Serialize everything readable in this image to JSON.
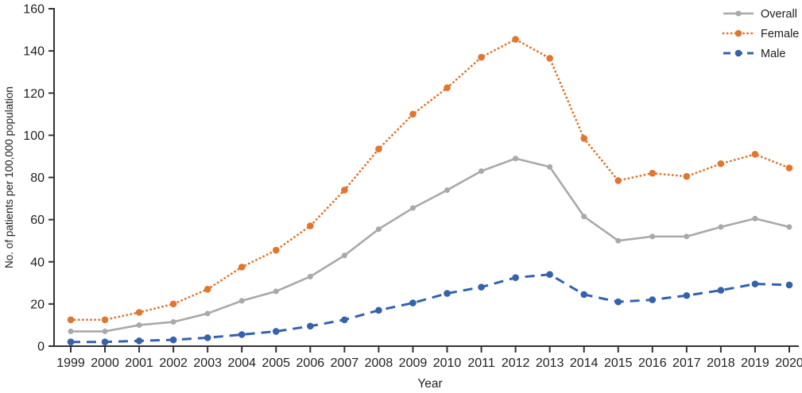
{
  "figure": {
    "title": "",
    "xlabel": "Year",
    "ylabel": "No. of patients per 100,000 population"
  },
  "chart_data": {
    "type": "line",
    "x": [
      1999,
      2000,
      2001,
      2002,
      2003,
      2004,
      2005,
      2006,
      2007,
      2008,
      2009,
      2010,
      2011,
      2012,
      2013,
      2014,
      2015,
      2016,
      2017,
      2018,
      2019,
      2020
    ],
    "x_tick_labels": [
      "1999",
      "2000",
      "2001",
      "2002",
      "2003",
      "2004",
      "2005",
      "2006",
      "2007",
      "2008",
      "2009",
      "2010",
      "2011",
      "2012",
      "2013",
      "2014",
      "2015",
      "2016",
      "2017",
      "2018",
      "2019",
      "2020"
    ],
    "y_ticks": [
      0,
      20,
      40,
      60,
      80,
      100,
      120,
      140,
      160
    ],
    "ylim": [
      0,
      160
    ],
    "xlabel": "Year",
    "ylabel": "No. of patients per 100,000 population",
    "grid": false,
    "legend_position": "top-right",
    "background_color": "#ffffff",
    "axis_color": "#333333",
    "tick_label_color": "#1f1f1f",
    "series": [
      {
        "name": "Overall",
        "color": "#a9a9a9",
        "line_style": "solid",
        "marker": "circle",
        "values": [
          7,
          7,
          10,
          11.5,
          15.5,
          21.5,
          26,
          33,
          43,
          55.5,
          65.5,
          74,
          83,
          89,
          85,
          61.5,
          50,
          52,
          52,
          56.5,
          60.5,
          56.5
        ]
      },
      {
        "name": "Female",
        "color": "#e1762e",
        "line_style": "dotted",
        "marker": "circle",
        "values": [
          12.5,
          12.5,
          16,
          20,
          27,
          37.5,
          45.5,
          57,
          74,
          93.5,
          110,
          122.5,
          137,
          145.5,
          136.5,
          98.5,
          78.5,
          82,
          80.5,
          86.5,
          91,
          84.5
        ]
      },
      {
        "name": "Male",
        "color": "#3462ab",
        "line_style": "dashed",
        "marker": "circle",
        "values": [
          2,
          2,
          2.5,
          3,
          4,
          5.5,
          7,
          9.5,
          12.5,
          17,
          20.5,
          25,
          28,
          32.5,
          34,
          24.5,
          21,
          22,
          24,
          26.5,
          29.5,
          29
        ]
      }
    ]
  }
}
